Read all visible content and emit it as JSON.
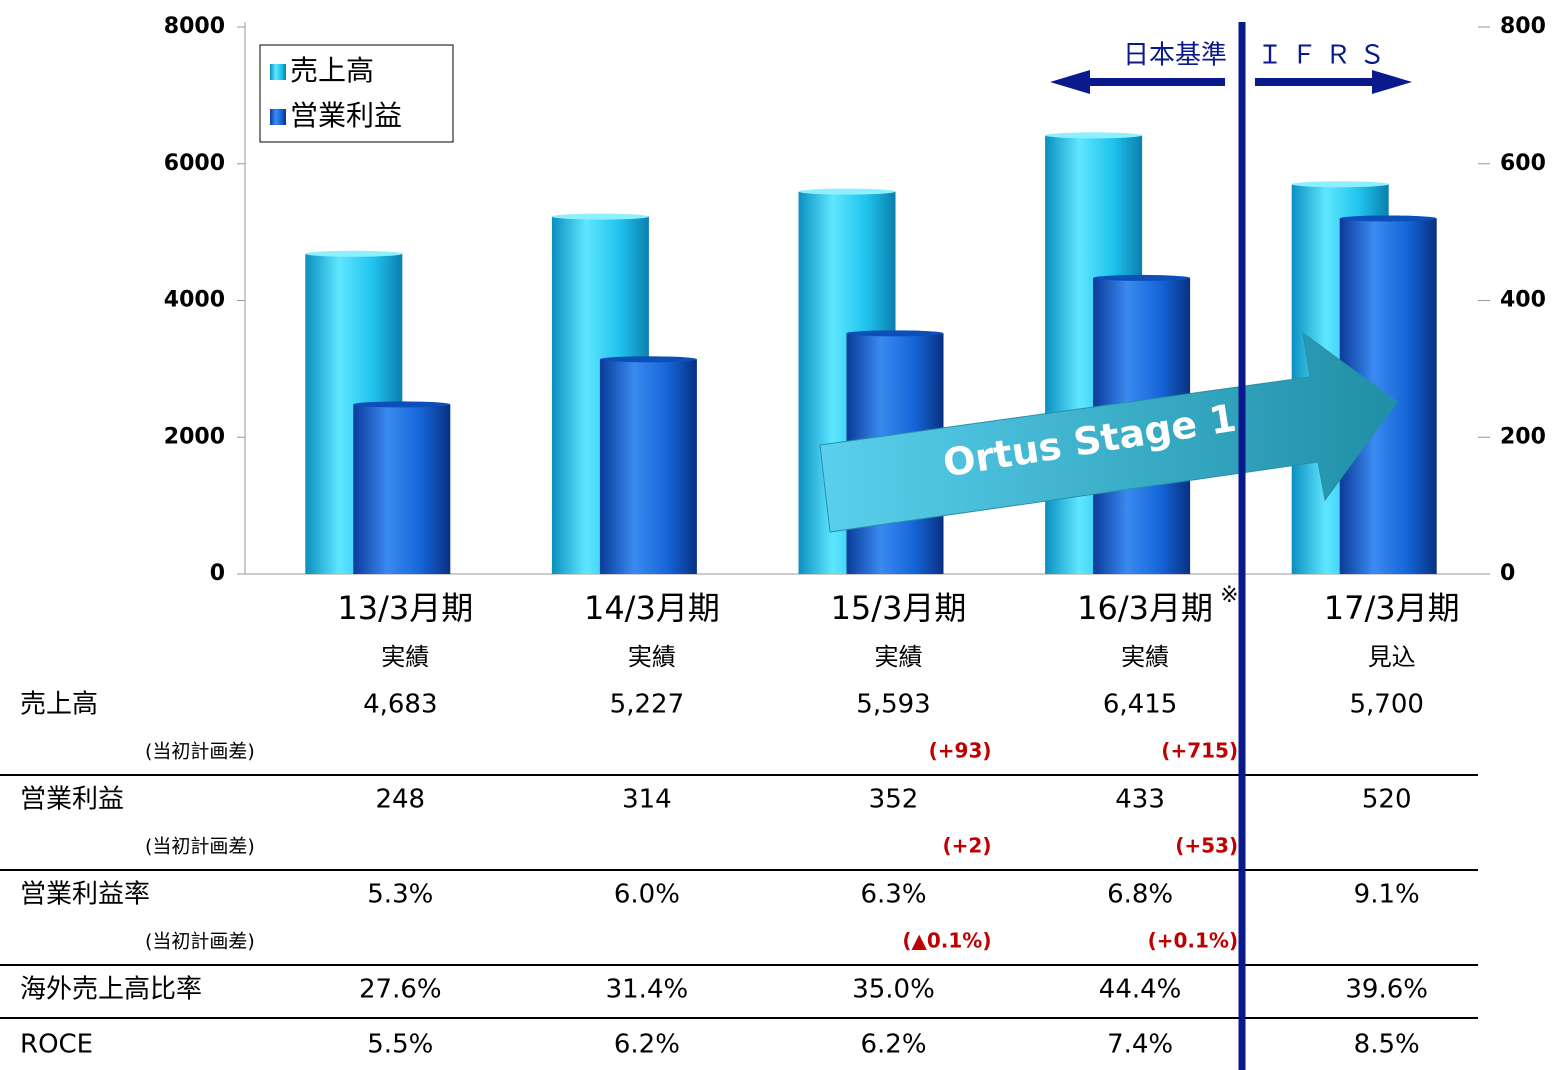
{
  "chart_data": {
    "type": "bar",
    "categories": [
      "13/3月期",
      "14/3月期",
      "15/3月期",
      "16/3月期",
      "17/3月期"
    ],
    "category_notes": [
      null,
      null,
      null,
      "※",
      null
    ],
    "category_sublabels": [
      "実績",
      "実績",
      "実績",
      "実績",
      "見込"
    ],
    "series": [
      {
        "name": "売上高",
        "color": "#1fc3ee",
        "values": [
          4683,
          5227,
          5593,
          6415,
          5700
        ]
      },
      {
        "name": "営業利益",
        "color": "#1565d8",
        "axis": "y2",
        "values": [
          248,
          314,
          352,
          433,
          520
        ]
      }
    ],
    "ylim": [
      0,
      8000
    ],
    "yticks": [
      0,
      2000,
      4000,
      6000,
      8000
    ],
    "y2lim": [
      0,
      800
    ],
    "y2ticks": [
      0,
      200,
      400,
      600,
      800
    ],
    "grid": false,
    "legend": "upper left",
    "annotations": [
      "日本基準",
      "ＩＦＲＳ",
      "Ortus Stage 1"
    ]
  },
  "table": {
    "rows": [
      {
        "label": "売上高",
        "values": [
          "4,683",
          "5,227",
          "5,593",
          "6,415",
          "5,700"
        ]
      },
      {
        "label": "(当初計画差)",
        "values": [
          null,
          null,
          "(+93)",
          "(+715)",
          null
        ]
      },
      {
        "label": "営業利益",
        "values": [
          "248",
          "314",
          "352",
          "433",
          "520"
        ]
      },
      {
        "label": "(当初計画差)",
        "values": [
          null,
          null,
          "(+2)",
          "(+53)",
          null
        ]
      },
      {
        "label": "営業利益率",
        "values": [
          "5.3%",
          "6.0%",
          "6.3%",
          "6.8%",
          "9.1%"
        ]
      },
      {
        "label": "(当初計画差)",
        "values": [
          null,
          null,
          "(▲0.1%)",
          "(+0.1%)",
          null
        ]
      },
      {
        "label": "海外売上高比率",
        "values": [
          "27.6%",
          "31.4%",
          "35.0%",
          "44.4%",
          "39.6%"
        ]
      },
      {
        "label": "ROCE",
        "values": [
          "5.5%",
          "6.2%",
          "6.2%",
          "7.4%",
          "8.5%"
        ]
      }
    ]
  }
}
